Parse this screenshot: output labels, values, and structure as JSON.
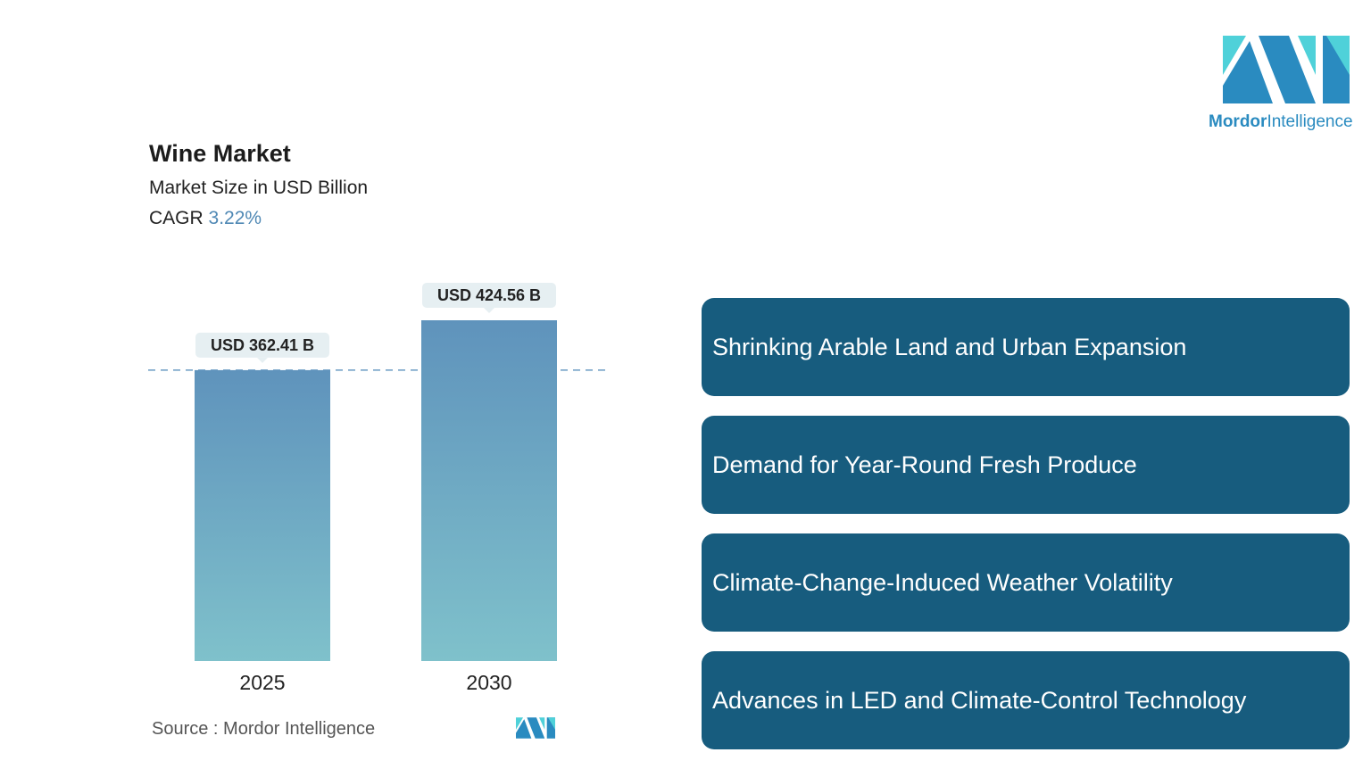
{
  "brand": {
    "name_bold": "Mordor",
    "name_rest": "Intelligence",
    "logo_icon": "mordor-intelligence-logo"
  },
  "header": {
    "title": "Wine Market",
    "subtitle": "Market Size in USD Billion",
    "cagr_label": "CAGR",
    "cagr_value": "3.22%"
  },
  "chart_data": {
    "type": "bar",
    "categories": [
      "2025",
      "2030"
    ],
    "values": [
      362.41,
      424.56
    ],
    "value_labels": [
      "USD 362.41 B",
      "USD 424.56 B"
    ],
    "title": "Wine Market",
    "subtitle": "Market Size in USD Billion",
    "reference_line": 362.41,
    "grid": false,
    "colors": {
      "bar_top": "#5f93bc",
      "bar_bottom": "#7fc1cb",
      "label_bg": "#e6eff2",
      "dashed_line": "#6b9cc4"
    }
  },
  "source": {
    "label": "Source :",
    "value": "Mordor Intelligence"
  },
  "drivers": [
    "Shrinking Arable Land and Urban Expansion",
    "Demand for Year-Round Fresh Produce",
    "Climate-Change-Induced Weather Volatility",
    "Advances in LED and Climate-Control Technology"
  ],
  "colors": {
    "driver_bg": "#175c7e",
    "accent": "#2a8bc0",
    "logo_teal": "#4fd1d9"
  }
}
